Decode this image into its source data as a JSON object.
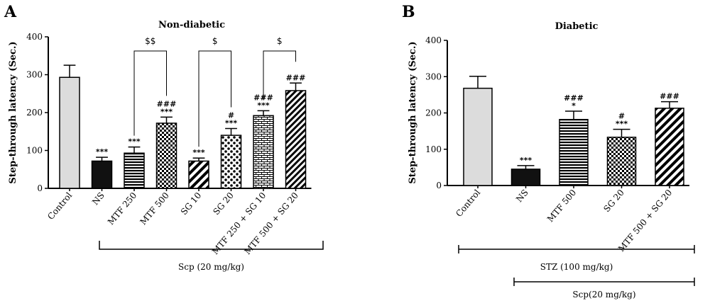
{
  "chart_data": [
    {
      "panel": "A",
      "type": "bar",
      "title": "Non-diabetic",
      "xlabel": "",
      "ylabel": "Step-through latency (Sec.)",
      "ylim": [
        0,
        400
      ],
      "yticks": [
        0,
        100,
        200,
        300,
        400
      ],
      "grid": false,
      "categories": [
        "Control",
        "NS",
        "MTF 250",
        "MTF 500",
        "SG 10",
        "SG 20",
        "MTF 250 + SG 10",
        "MTF 500 + SG 20"
      ],
      "values": [
        293,
        72,
        93,
        172,
        72,
        140,
        192,
        258
      ],
      "errors": [
        32,
        10,
        16,
        16,
        8,
        18,
        13,
        20
      ],
      "patterns": [
        "light-gray",
        "black",
        "horizontal-lines",
        "checker",
        "diagonal-lines",
        "crosshatch",
        "brick",
        "diagonal-dense"
      ],
      "annotations": [
        {
          "bar": 1,
          "lines": [
            "***"
          ]
        },
        {
          "bar": 2,
          "lines": [
            "***"
          ]
        },
        {
          "bar": 3,
          "lines": [
            "###",
            "***"
          ]
        },
        {
          "bar": 4,
          "lines": [
            "***"
          ]
        },
        {
          "bar": 5,
          "lines": [
            "#",
            "***"
          ]
        },
        {
          "bar": 6,
          "lines": [
            "###",
            "***"
          ]
        },
        {
          "bar": 7,
          "lines": [
            "###"
          ]
        }
      ],
      "comparisons": [
        {
          "from": 2,
          "to": 3,
          "label": "$$"
        },
        {
          "from": 4,
          "to": 5,
          "label": "$"
        },
        {
          "from": 6,
          "to": 7,
          "label": "$"
        }
      ],
      "group_note": "Scp (20 mg/kg)"
    },
    {
      "panel": "B",
      "type": "bar",
      "title": "Diabetic",
      "xlabel": "",
      "ylabel": "Step-through latency (Sec.)",
      "ylim": [
        0,
        400
      ],
      "yticks": [
        0,
        100,
        200,
        300,
        400
      ],
      "grid": false,
      "categories": [
        "Control",
        "NS",
        "MTF 500",
        "SG 20",
        "MTF 500 + SG 20"
      ],
      "values": [
        268,
        45,
        182,
        133,
        213
      ],
      "errors": [
        33,
        10,
        23,
        22,
        18
      ],
      "patterns": [
        "light-gray",
        "black",
        "horizontal-lines",
        "checker",
        "diagonal-lines"
      ],
      "annotations": [
        {
          "bar": 1,
          "lines": [
            "***"
          ]
        },
        {
          "bar": 2,
          "lines": [
            "###",
            "*"
          ]
        },
        {
          "bar": 3,
          "lines": [
            "#",
            "***"
          ]
        },
        {
          "bar": 4,
          "lines": [
            "###"
          ]
        }
      ],
      "group_notes": [
        "STZ (100 mg/kg)",
        "Scp(20 mg/kg)"
      ]
    }
  ]
}
